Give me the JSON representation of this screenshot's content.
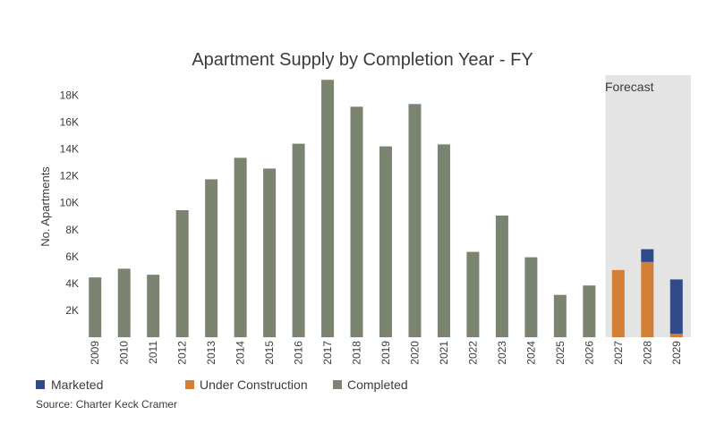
{
  "chart_data": {
    "type": "bar",
    "stacked": true,
    "title": "Apartment Supply by Completion Year - FY",
    "ylabel": "No. Apartments",
    "xlabel": "",
    "ylim": [
      0,
      19500
    ],
    "y_ticks": [
      2000,
      4000,
      6000,
      8000,
      10000,
      12000,
      14000,
      16000,
      18000
    ],
    "y_tick_labels": [
      "2K",
      "4K",
      "6K",
      "8K",
      "10K",
      "12K",
      "14K",
      "16K",
      "18K"
    ],
    "categories": [
      "2009",
      "2010",
      "2011",
      "2012",
      "2013",
      "2014",
      "2015",
      "2016",
      "2017",
      "2018",
      "2019",
      "2020",
      "2021",
      "2022",
      "2023",
      "2024",
      "2025",
      "2026",
      "2027",
      "2028",
      "2029"
    ],
    "series": [
      {
        "name": "Completed",
        "color": "#7a8471",
        "values": [
          4450,
          5100,
          4650,
          9450,
          11750,
          13350,
          12550,
          14400,
          19150,
          17150,
          14200,
          17350,
          14350,
          6350,
          9050,
          5950,
          3150,
          3850,
          0,
          0,
          0
        ]
      },
      {
        "name": "Under Construction",
        "color": "#d27f37",
        "values": [
          0,
          0,
          0,
          0,
          0,
          0,
          0,
          0,
          0,
          0,
          0,
          0,
          0,
          0,
          0,
          0,
          0,
          0,
          5000,
          5600,
          250
        ]
      },
      {
        "name": "Marketed",
        "color": "#304a8c",
        "values": [
          0,
          0,
          0,
          0,
          0,
          0,
          0,
          0,
          0,
          0,
          0,
          0,
          0,
          0,
          0,
          0,
          0,
          0,
          0,
          950,
          4050
        ]
      }
    ],
    "forecast": {
      "label": "Forecast",
      "from": "2027",
      "to": "2029",
      "color": "#e4e4e4"
    },
    "legend": {
      "placement": "bottom-left",
      "order": [
        "Marketed",
        "Under Construction",
        "Completed"
      ]
    },
    "grid": false,
    "source": "Source: Charter Keck Cramer"
  }
}
